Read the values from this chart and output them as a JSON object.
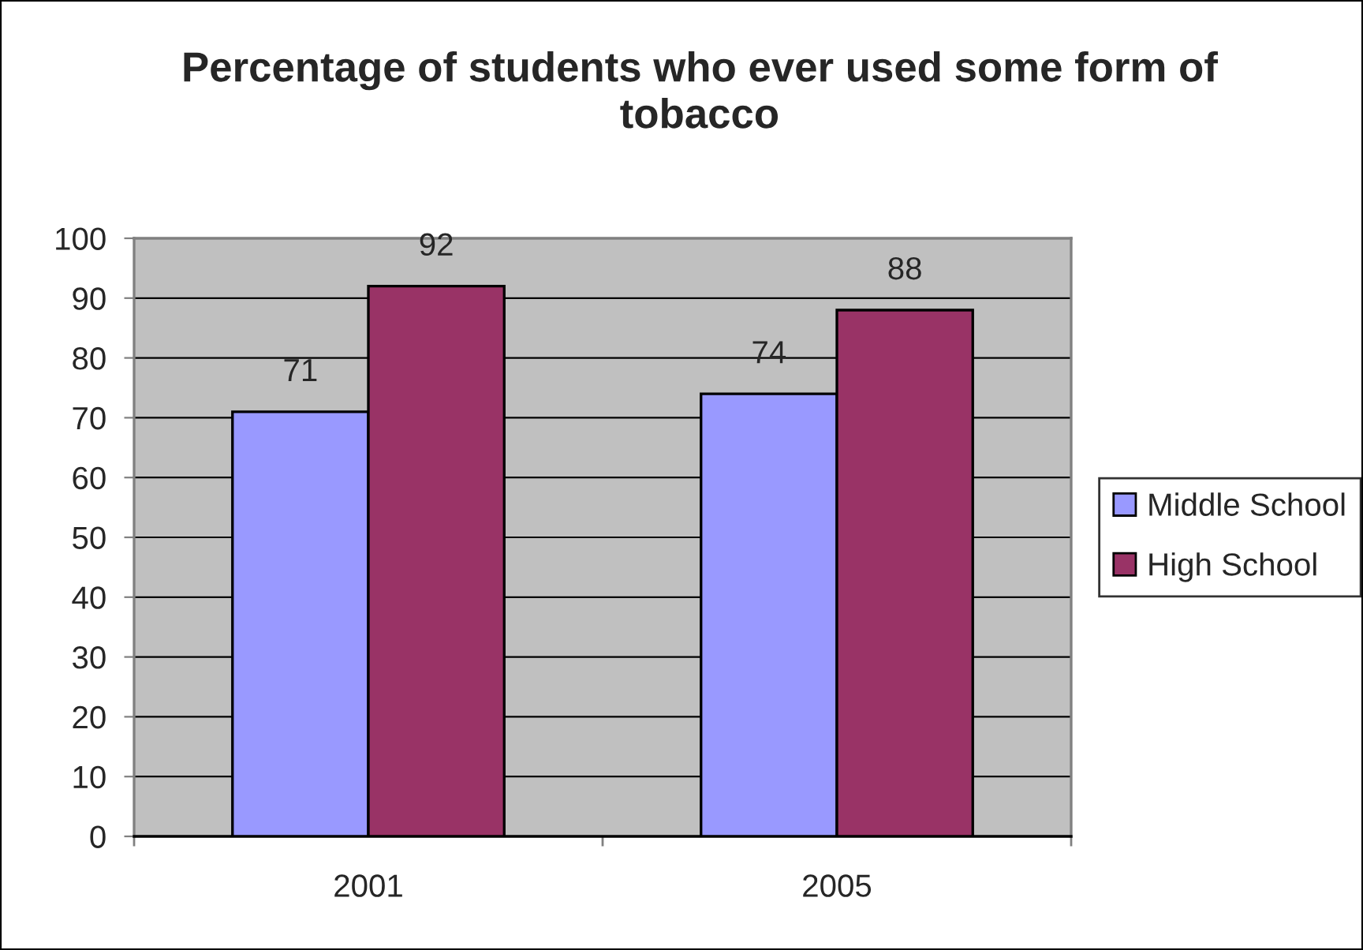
{
  "chart_data": {
    "type": "bar",
    "title": "Percentage of students who ever used some form of tobacco",
    "categories": [
      "2001",
      "2005"
    ],
    "series": [
      {
        "name": "Middle School",
        "color": "#9999ff",
        "values": [
          71,
          74
        ]
      },
      {
        "name": "High School",
        "color": "#993366",
        "values": [
          92,
          88
        ]
      }
    ],
    "ylim": [
      0,
      100
    ],
    "yticks": [
      0,
      10,
      20,
      30,
      40,
      50,
      60,
      70,
      80,
      90,
      100
    ],
    "grid": "y",
    "legend": "right",
    "data_labels": true
  }
}
